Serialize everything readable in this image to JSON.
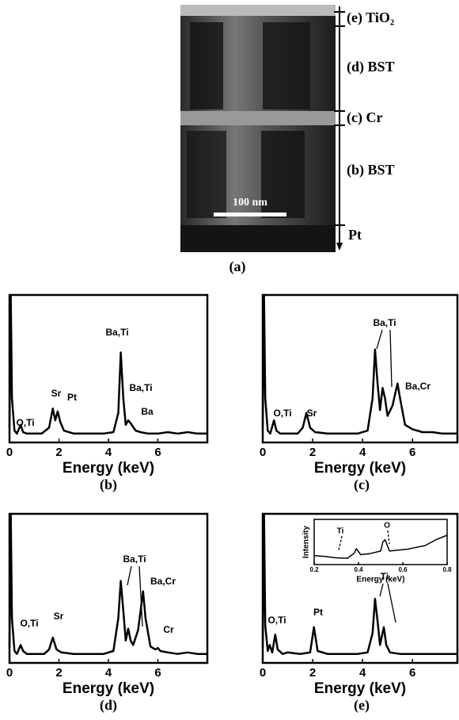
{
  "panel_a": {
    "layers": [
      "(e) TiO₂",
      "(d) BST",
      "(c) Cr",
      "(b) BST",
      "Pt"
    ],
    "scale_bar": "100 nm",
    "caption": "(a)"
  },
  "chart_data": [
    {
      "type": "line",
      "caption": "(b)",
      "xlabel": "Energy (keV)",
      "xlim": [
        0,
        8
      ],
      "xticks": [
        0,
        2,
        4,
        6
      ],
      "ylim": [
        0,
        100
      ],
      "color": "#000000",
      "x": [
        0,
        0.05,
        0.1,
        0.2,
        0.3,
        0.45,
        0.55,
        0.7,
        1.0,
        1.3,
        1.6,
        1.75,
        1.85,
        1.95,
        2.05,
        2.2,
        2.6,
        3.2,
        3.8,
        4.2,
        4.4,
        4.5,
        4.6,
        4.7,
        4.8,
        4.9,
        5.1,
        5.3,
        5.6,
        6.0,
        6.4,
        6.8,
        7.2,
        7.6,
        8
      ],
      "values": [
        10,
        100,
        30,
        8,
        6,
        12,
        7,
        6,
        6,
        6,
        10,
        23,
        15,
        21,
        14,
        8,
        6,
        6,
        6,
        7,
        20,
        61,
        30,
        12,
        15,
        13,
        8,
        7,
        6,
        6,
        7,
        6,
        7,
        6,
        6
      ],
      "annotations": [
        "O,Ti",
        "Sr",
        "Pt",
        "Ba,Ti",
        "Ba,Ti",
        "Ba"
      ]
    },
    {
      "type": "line",
      "caption": "(c)",
      "xlabel": "Energy (keV)",
      "xlim": [
        0,
        7.8
      ],
      "xticks": [
        0,
        2,
        4,
        6
      ],
      "ylim": [
        0,
        100
      ],
      "color": "#000000",
      "x": [
        0,
        0.05,
        0.1,
        0.2,
        0.3,
        0.45,
        0.55,
        0.7,
        1.0,
        1.4,
        1.6,
        1.75,
        1.9,
        2.1,
        2.6,
        3.2,
        3.8,
        4.2,
        4.4,
        4.5,
        4.6,
        4.7,
        4.8,
        4.9,
        5.0,
        5.2,
        5.4,
        5.5,
        5.7,
        6.0,
        6.4,
        6.8,
        7.2,
        7.8
      ],
      "values": [
        10,
        100,
        30,
        8,
        6,
        15,
        8,
        6,
        6,
        6,
        10,
        20,
        10,
        7,
        6,
        6,
        6,
        8,
        30,
        63,
        40,
        22,
        37,
        30,
        18,
        25,
        40,
        30,
        12,
        9,
        7,
        7,
        6,
        6
      ],
      "annotations": [
        "O,Ti",
        "Sr",
        "Ba,Ti",
        "Ba,Cr"
      ]
    },
    {
      "type": "line",
      "caption": "(d)",
      "xlabel": "Energy (keV)",
      "xlim": [
        0,
        8
      ],
      "xticks": [
        0,
        2,
        4,
        6
      ],
      "ylim": [
        0,
        100
      ],
      "color": "#000000",
      "x": [
        0,
        0.05,
        0.1,
        0.2,
        0.3,
        0.45,
        0.55,
        0.7,
        1.0,
        1.4,
        1.6,
        1.75,
        1.9,
        2.1,
        2.6,
        3.2,
        3.8,
        4.2,
        4.4,
        4.5,
        4.6,
        4.7,
        4.8,
        4.9,
        5.0,
        5.2,
        5.4,
        5.5,
        5.7,
        5.9,
        6.0,
        6.1,
        6.4,
        6.8,
        7.2,
        7.6,
        8
      ],
      "values": [
        10,
        100,
        30,
        8,
        6,
        12,
        8,
        6,
        6,
        6,
        9,
        17,
        9,
        7,
        6,
        6,
        6,
        8,
        30,
        55,
        35,
        15,
        23,
        15,
        12,
        22,
        48,
        30,
        11,
        9,
        10,
        8,
        7,
        6,
        7,
        6,
        6
      ],
      "annotations": [
        "O,Ti",
        "Sr",
        "Ba,Ti",
        "Ba,Cr",
        "Cr"
      ]
    },
    {
      "type": "line",
      "caption": "(e)",
      "xlabel": "Energy (keV)",
      "xlim": [
        0,
        7.8
      ],
      "xticks": [
        0,
        2,
        4,
        6
      ],
      "ylim": [
        0,
        100
      ],
      "color": "#000000",
      "x": [
        0,
        0.05,
        0.1,
        0.2,
        0.28,
        0.38,
        0.5,
        0.6,
        0.8,
        1.0,
        1.5,
        1.9,
        2.05,
        2.2,
        2.6,
        3.2,
        3.8,
        4.2,
        4.4,
        4.5,
        4.6,
        4.7,
        4.85,
        4.95,
        5.1,
        5.5,
        6.0,
        6.4,
        6.8,
        7.2,
        7.8
      ],
      "values": [
        10,
        100,
        25,
        8,
        12,
        7,
        19,
        9,
        6,
        7,
        6,
        7,
        24,
        8,
        6,
        6,
        6,
        7,
        20,
        43,
        28,
        12,
        24,
        12,
        7,
        6,
        6,
        6,
        6,
        6,
        6
      ],
      "annotations": [
        "O,Ti",
        "Pt",
        "Ti"
      ]
    },
    {
      "type": "line",
      "xlabel": "Energy (keV)",
      "ylabel": "Intensity",
      "xlim": [
        0.2,
        0.8
      ],
      "xticks": [
        0.2,
        0.4,
        0.6,
        0.8
      ],
      "ylim": [
        0,
        100
      ],
      "color": "#000000",
      "x": [
        0.2,
        0.25,
        0.3,
        0.35,
        0.38,
        0.39,
        0.41,
        0.45,
        0.5,
        0.51,
        0.52,
        0.54,
        0.58,
        0.62,
        0.66,
        0.7,
        0.75,
        0.8
      ],
      "values": [
        20,
        18,
        15,
        14,
        25,
        35,
        22,
        24,
        30,
        50,
        55,
        30,
        32,
        34,
        38,
        42,
        55,
        65
      ],
      "annotations": [
        "Ti",
        "O"
      ]
    }
  ]
}
